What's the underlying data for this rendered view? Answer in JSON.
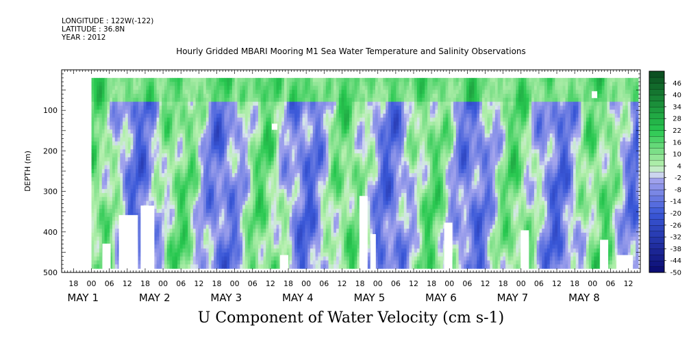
{
  "header": {
    "longitude": "LONGITUDE : 122W(-122)",
    "latitude": "LATITUDE : 36.8N",
    "year": "YEAR : 2012"
  },
  "chart_data": {
    "type": "heatmap",
    "title": "Hourly Gridded MBARI Mooring M1 Sea Water Temperature and Salinity Observations",
    "xlabel": "U Component of Water Velocity (cm s-1)",
    "ylabel": "DEPTH (m)",
    "ylim": [
      500,
      0
    ],
    "y_ticks": [
      100,
      200,
      300,
      400,
      500
    ],
    "x_hour_ticks": [
      "18",
      "00",
      "06",
      "12",
      "18",
      "00",
      "06",
      "12",
      "18",
      "00",
      "06",
      "12",
      "18",
      "00",
      "06",
      "12",
      "18",
      "00",
      "06",
      "12",
      "18",
      "00",
      "06",
      "12",
      "18",
      "00",
      "06",
      "12",
      "18",
      "00",
      "06",
      "12"
    ],
    "x_day_labels": [
      {
        "month": "MAY",
        "day": "1"
      },
      {
        "month": "MAY",
        "day": "2"
      },
      {
        "month": "MAY",
        "day": "3"
      },
      {
        "month": "MAY",
        "day": "4"
      },
      {
        "month": "MAY",
        "day": "5"
      },
      {
        "month": "MAY",
        "day": "6"
      },
      {
        "month": "MAY",
        "day": "7"
      },
      {
        "month": "MAY",
        "day": "8"
      }
    ],
    "x_range": [
      "2012-04-30 14:00",
      "2012-05-08 16:00"
    ],
    "data_depth_range_m": [
      20,
      490
    ],
    "colorbar": {
      "levels": [
        46,
        40,
        34,
        28,
        22,
        16,
        10,
        4,
        -2,
        -8,
        -14,
        -20,
        -26,
        -32,
        -38,
        -44,
        -50
      ],
      "min": -50,
      "max": 52,
      "step": 3
    },
    "pattern": "alternating bands of positive (green, roughly 0 to 20 cm/s) and negative (blue/purple, roughly 0 to -20 cm/s) U velocity throughout 20-490 m depth; surface layer mostly positive",
    "colors": {
      "negative_strong": "#0a0a70",
      "negative_mid": "#3a58d8",
      "negative_weak": "#a8a8ee",
      "positive_weak": "#b8f0b0",
      "positive_mid": "#28c850",
      "positive_strong": "#0a4a1e"
    }
  }
}
